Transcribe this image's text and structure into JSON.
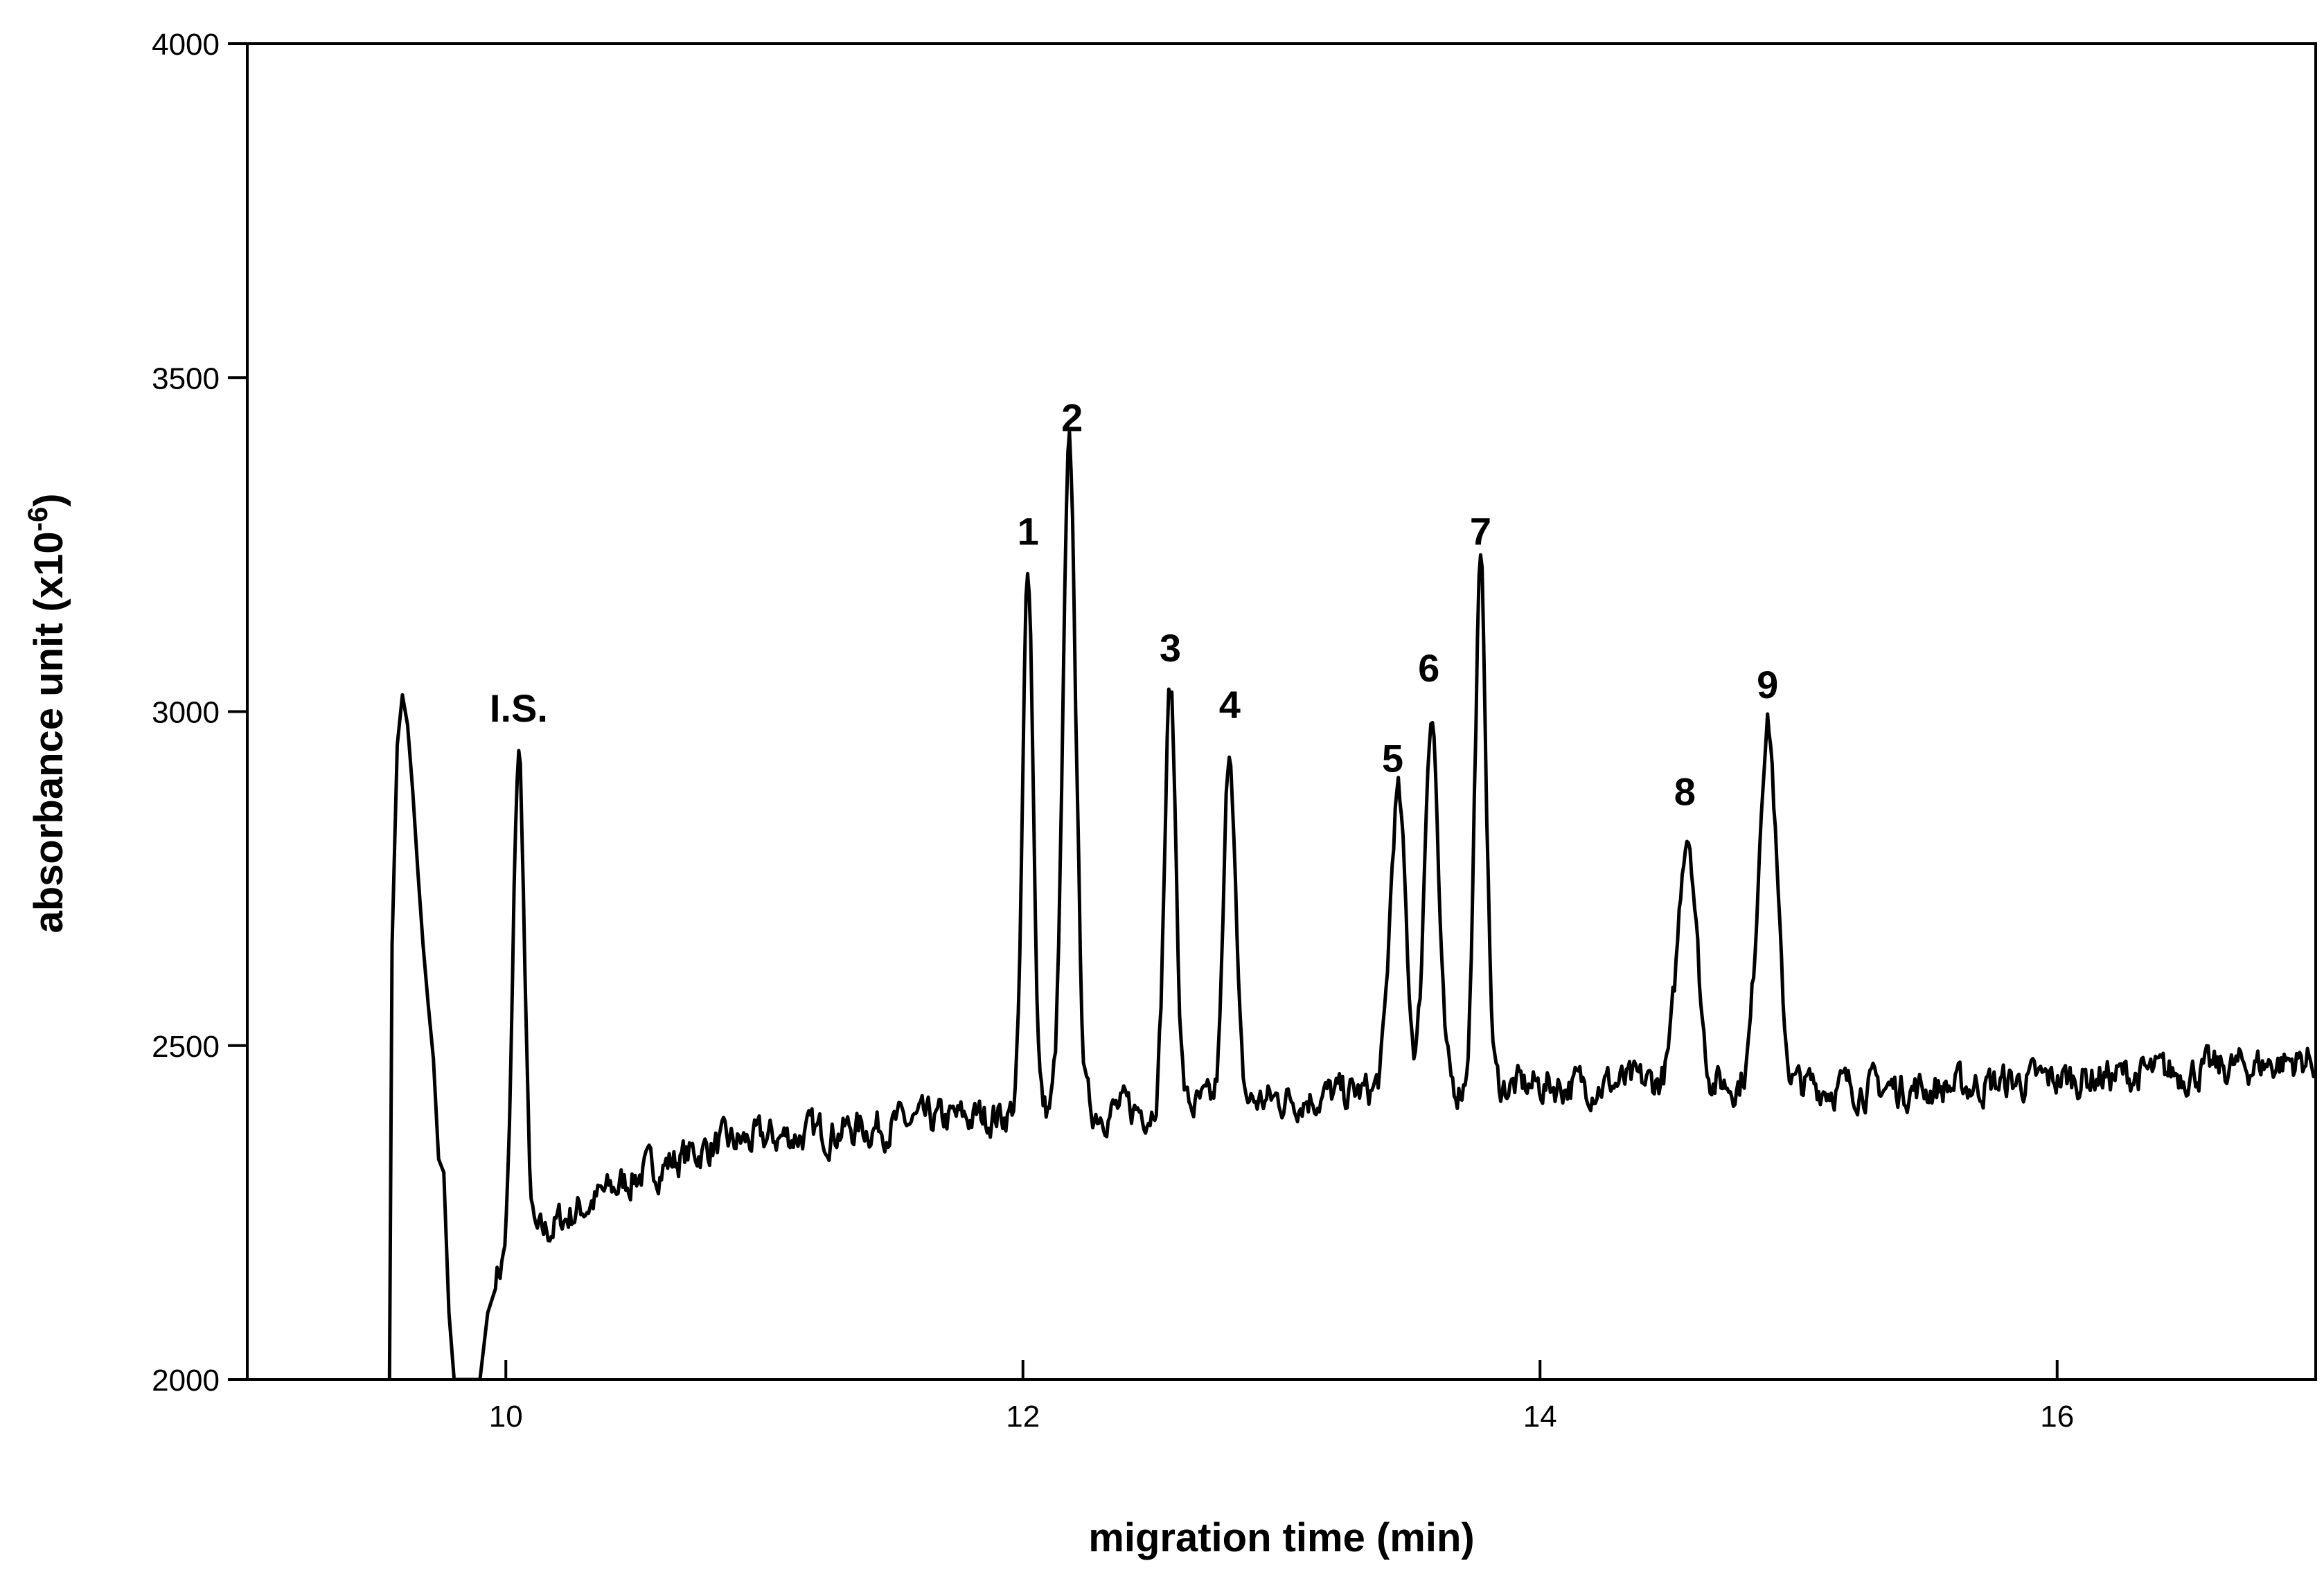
{
  "chart_data": {
    "type": "line",
    "title": "",
    "xlabel": "migration time (min)",
    "ylabel_main": "absorbance unit (x10",
    "ylabel_sup": "-6",
    "ylabel_close": ")",
    "xlim": [
      9.0,
      17.0
    ],
    "ylim": [
      2000,
      4000
    ],
    "xticks": [
      10,
      12,
      14,
      16
    ],
    "xtick_labels": [
      "10",
      "12",
      "14",
      "16"
    ],
    "yticks": [
      2000,
      2500,
      3000,
      3500,
      4000
    ],
    "ytick_labels": [
      "2000",
      "2500",
      "3000",
      "3500",
      "4000"
    ],
    "grid": false,
    "line_color": "#000000",
    "baseline_anchors": [
      [
        9.9,
        2140
      ],
      [
        10.2,
        2235
      ],
      [
        10.5,
        2305
      ],
      [
        10.8,
        2350
      ],
      [
        11.2,
        2370
      ],
      [
        11.6,
        2385
      ],
      [
        12.0,
        2400
      ],
      [
        12.5,
        2405
      ],
      [
        13.0,
        2420
      ],
      [
        13.5,
        2435
      ],
      [
        14.0,
        2440
      ],
      [
        14.5,
        2445
      ],
      [
        15.0,
        2440
      ],
      [
        15.5,
        2435
      ],
      [
        16.0,
        2450
      ],
      [
        16.5,
        2460
      ],
      [
        17.0,
        2480
      ]
    ],
    "solvent_peak": {
      "x": [
        9.55,
        9.56,
        9.58,
        9.6,
        9.62,
        9.64,
        9.66,
        9.68,
        9.7,
        9.72,
        9.74,
        9.76,
        9.78,
        9.8
      ],
      "y": [
        2000,
        2650,
        2950,
        3025,
        2980,
        2880,
        2760,
        2650,
        2560,
        2480,
        2330,
        2310,
        2100,
        2000
      ]
    },
    "peaks": [
      {
        "label": "I.S.",
        "x": 10.05,
        "y": 2935,
        "width": 0.022
      },
      {
        "label": "1",
        "x": 12.02,
        "y": 3220,
        "width": 0.02
      },
      {
        "label": "2",
        "x": 12.18,
        "y": 3385,
        "width": 0.025
      },
      {
        "label": "3",
        "x": 12.57,
        "y": 3035,
        "width": 0.022
      },
      {
        "label": "4",
        "x": 12.8,
        "y": 2950,
        "width": 0.022
      },
      {
        "label": "5",
        "x": 13.45,
        "y": 2875,
        "width": 0.03
      },
      {
        "label": "6",
        "x": 13.58,
        "y": 3005,
        "width": 0.026
      },
      {
        "label": "7",
        "x": 13.77,
        "y": 3210,
        "width": 0.022
      },
      {
        "label": "8",
        "x": 14.57,
        "y": 2825,
        "width": 0.035
      },
      {
        "label": "9",
        "x": 14.88,
        "y": 2985,
        "width": 0.035
      }
    ],
    "label_positions": [
      {
        "text": "I.S.",
        "x": 10.05,
        "y": 2985
      },
      {
        "text": "1",
        "x": 12.02,
        "y": 3250
      },
      {
        "text": "2",
        "x": 12.19,
        "y": 3420
      },
      {
        "text": "3",
        "x": 12.57,
        "y": 3075
      },
      {
        "text": "4",
        "x": 12.8,
        "y": 2990
      },
      {
        "text": "5",
        "x": 13.43,
        "y": 2910
      },
      {
        "text": "6",
        "x": 13.57,
        "y": 3045
      },
      {
        "text": "7",
        "x": 13.77,
        "y": 3250
      },
      {
        "text": "8",
        "x": 14.56,
        "y": 2860
      },
      {
        "text": "9",
        "x": 14.88,
        "y": 3020
      }
    ]
  }
}
